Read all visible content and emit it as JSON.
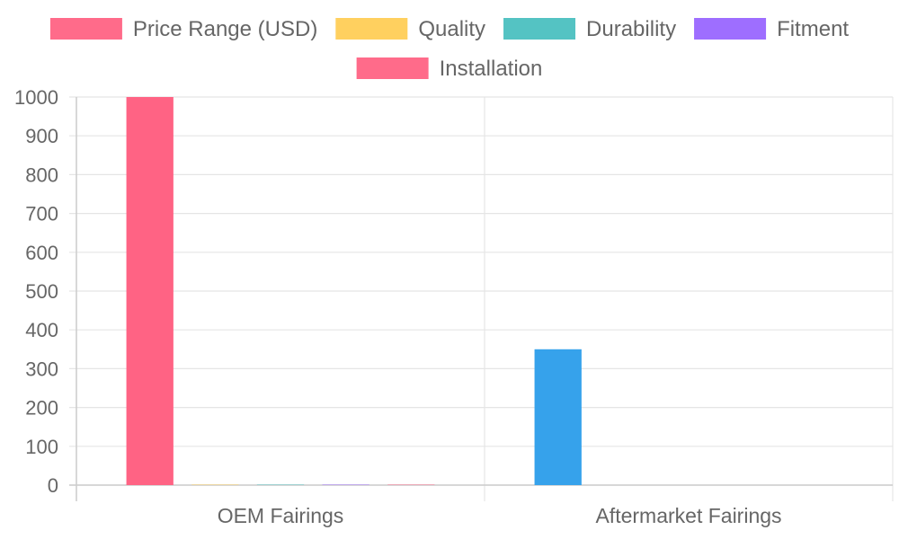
{
  "chart_data": {
    "type": "bar",
    "categories": [
      "OEM Fairings",
      "Aftermarket Fairings"
    ],
    "series": [
      {
        "name": "Price Range (USD)",
        "color": "#ff6384",
        "values": [
          1000,
          350
        ],
        "bar_colors": [
          "#ff6384",
          "#36a2eb"
        ]
      },
      {
        "name": "Quality",
        "color": "#ffcd56",
        "values": [
          1,
          0
        ]
      },
      {
        "name": "Durability",
        "color": "#4bc0c0",
        "values": [
          1,
          0
        ]
      },
      {
        "name": "Fitment",
        "color": "#9966ff",
        "values": [
          1,
          0
        ]
      },
      {
        "name": "Installation",
        "color": "#ff6384",
        "values": [
          1,
          0
        ]
      }
    ],
    "yticks": [
      "0",
      "100",
      "200",
      "300",
      "400",
      "500",
      "600",
      "700",
      "800",
      "900",
      "1000"
    ],
    "ylim": [
      0,
      1000
    ],
    "grid": true,
    "legend_position": "top"
  }
}
